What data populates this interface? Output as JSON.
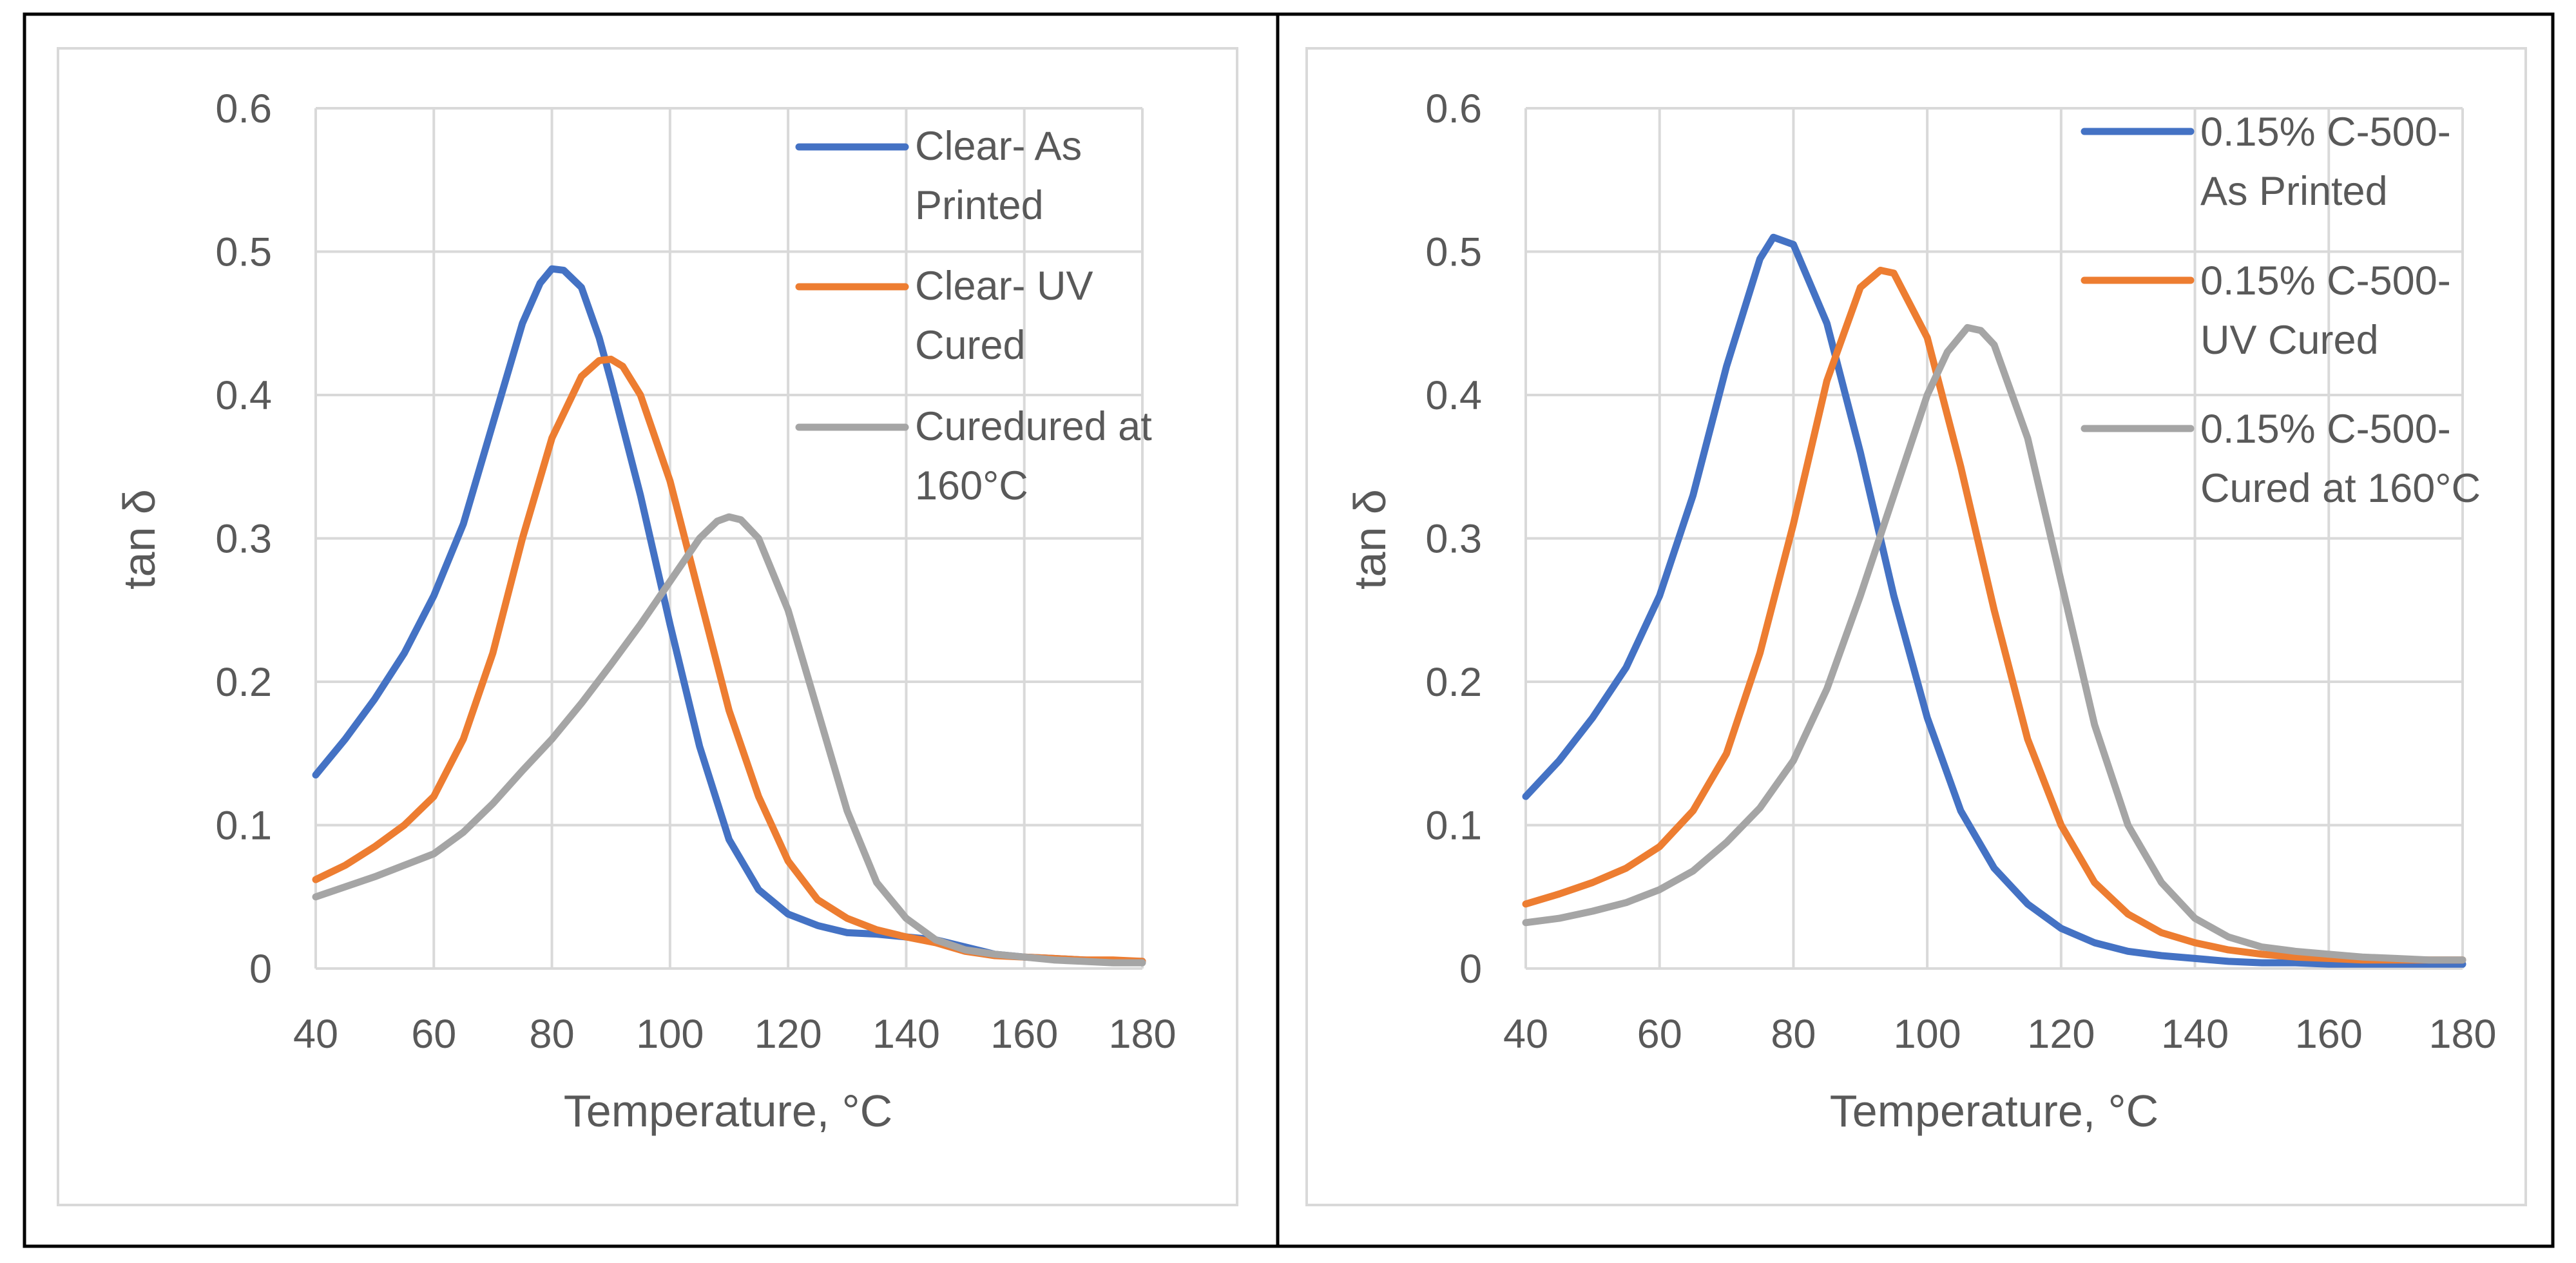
{
  "chart_data": [
    {
      "type": "line",
      "title": "",
      "xlabel": "Temperature, °C",
      "ylabel": "tan δ",
      "xlim": [
        40,
        180
      ],
      "ylim": [
        0,
        0.6
      ],
      "xticks": [
        "40",
        "60",
        "80",
        "100",
        "120",
        "140",
        "160",
        "180"
      ],
      "yticks": [
        "0",
        "0.1",
        "0.2",
        "0.3",
        "0.4",
        "0.5",
        "0.6"
      ],
      "grid": true,
      "legend_position": "top-right",
      "series": [
        {
          "name": "Clear- As Printed",
          "legend_lines": [
            "Clear- As",
            "Printed"
          ],
          "color": "#4472C4",
          "x": [
            40,
            45,
            50,
            55,
            60,
            65,
            70,
            75,
            78,
            80,
            82,
            85,
            88,
            90,
            95,
            100,
            105,
            110,
            115,
            120,
            125,
            130,
            135,
            140,
            145,
            150,
            155,
            160,
            165,
            170,
            175,
            180
          ],
          "y": [
            0.135,
            0.16,
            0.188,
            0.22,
            0.26,
            0.31,
            0.38,
            0.45,
            0.478,
            0.488,
            0.487,
            0.475,
            0.44,
            0.41,
            0.33,
            0.24,
            0.155,
            0.09,
            0.055,
            0.038,
            0.03,
            0.025,
            0.024,
            0.022,
            0.02,
            0.015,
            0.01,
            0.008,
            0.007,
            0.006,
            0.005,
            0.005
          ]
        },
        {
          "name": "Clear- UV Cured",
          "legend_lines": [
            "Clear- UV",
            "Cured"
          ],
          "color": "#ED7D31",
          "x": [
            40,
            45,
            50,
            55,
            60,
            65,
            70,
            75,
            80,
            85,
            88,
            90,
            92,
            95,
            100,
            105,
            110,
            115,
            120,
            125,
            130,
            135,
            140,
            145,
            150,
            155,
            160,
            165,
            170,
            175,
            180
          ],
          "y": [
            0.062,
            0.072,
            0.085,
            0.1,
            0.12,
            0.16,
            0.22,
            0.3,
            0.37,
            0.413,
            0.424,
            0.425,
            0.42,
            0.4,
            0.34,
            0.26,
            0.18,
            0.12,
            0.075,
            0.048,
            0.035,
            0.027,
            0.022,
            0.018,
            0.012,
            0.009,
            0.008,
            0.007,
            0.006,
            0.006,
            0.005
          ]
        },
        {
          "name": "Curedured at 160°C",
          "legend_lines": [
            "Curedured at",
            "160°C"
          ],
          "color": "#A5A5A5",
          "x": [
            40,
            45,
            50,
            55,
            60,
            65,
            70,
            75,
            80,
            85,
            90,
            95,
            100,
            105,
            108,
            110,
            112,
            115,
            120,
            125,
            130,
            135,
            140,
            145,
            150,
            155,
            160,
            165,
            170,
            175,
            180
          ],
          "y": [
            0.05,
            0.057,
            0.064,
            0.072,
            0.08,
            0.095,
            0.115,
            0.138,
            0.16,
            0.185,
            0.212,
            0.24,
            0.27,
            0.3,
            0.312,
            0.315,
            0.313,
            0.3,
            0.25,
            0.18,
            0.11,
            0.06,
            0.035,
            0.02,
            0.013,
            0.01,
            0.008,
            0.006,
            0.005,
            0.004,
            0.004
          ]
        }
      ]
    },
    {
      "type": "line",
      "title": "",
      "xlabel": "Temperature, °C",
      "ylabel": "tan δ",
      "xlim": [
        40,
        180
      ],
      "ylim": [
        0,
        0.6
      ],
      "xticks": [
        "40",
        "60",
        "80",
        "100",
        "120",
        "140",
        "160",
        "180"
      ],
      "yticks": [
        "0",
        "0.1",
        "0.2",
        "0.3",
        "0.4",
        "0.5",
        "0.6"
      ],
      "grid": true,
      "legend_position": "top-right",
      "series": [
        {
          "name": "0.15% C-500-As Printed",
          "legend_lines": [
            "0.15% C-500-",
            "As Printed"
          ],
          "color": "#4472C4",
          "x": [
            40,
            45,
            50,
            55,
            60,
            65,
            70,
            75,
            77,
            80,
            85,
            90,
            95,
            100,
            105,
            110,
            115,
            120,
            125,
            130,
            135,
            140,
            145,
            150,
            155,
            160,
            165,
            170,
            175,
            180
          ],
          "y": [
            0.12,
            0.145,
            0.175,
            0.21,
            0.26,
            0.33,
            0.42,
            0.495,
            0.51,
            0.505,
            0.45,
            0.36,
            0.26,
            0.175,
            0.11,
            0.07,
            0.045,
            0.028,
            0.018,
            0.012,
            0.009,
            0.007,
            0.005,
            0.004,
            0.004,
            0.003,
            0.003,
            0.003,
            0.003,
            0.003
          ]
        },
        {
          "name": "0.15% C-500-UV Cured",
          "legend_lines": [
            "0.15% C-500-",
            "UV Cured"
          ],
          "color": "#ED7D31",
          "x": [
            40,
            45,
            50,
            55,
            60,
            65,
            70,
            75,
            80,
            85,
            90,
            93,
            95,
            100,
            105,
            110,
            115,
            120,
            125,
            130,
            135,
            140,
            145,
            150,
            155,
            160,
            165,
            170,
            175,
            180
          ],
          "y": [
            0.045,
            0.052,
            0.06,
            0.07,
            0.085,
            0.11,
            0.15,
            0.22,
            0.31,
            0.41,
            0.475,
            0.487,
            0.485,
            0.44,
            0.35,
            0.25,
            0.16,
            0.1,
            0.06,
            0.038,
            0.025,
            0.018,
            0.013,
            0.01,
            0.008,
            0.007,
            0.006,
            0.006,
            0.006,
            0.006
          ]
        },
        {
          "name": "0.15% C-500-Cured at 160°C",
          "legend_lines": [
            "0.15% C-500-",
            "Cured at 160°C"
          ],
          "color": "#A5A5A5",
          "x": [
            40,
            45,
            50,
            55,
            60,
            65,
            70,
            75,
            80,
            85,
            90,
            95,
            100,
            103,
            106,
            108,
            110,
            115,
            120,
            125,
            130,
            135,
            140,
            145,
            150,
            155,
            160,
            165,
            170,
            175,
            180
          ],
          "y": [
            0.032,
            0.035,
            0.04,
            0.046,
            0.055,
            0.068,
            0.088,
            0.112,
            0.145,
            0.195,
            0.26,
            0.33,
            0.4,
            0.43,
            0.447,
            0.445,
            0.435,
            0.37,
            0.27,
            0.17,
            0.1,
            0.06,
            0.035,
            0.022,
            0.015,
            0.012,
            0.01,
            0.008,
            0.007,
            0.006,
            0.006
          ]
        }
      ]
    }
  ]
}
